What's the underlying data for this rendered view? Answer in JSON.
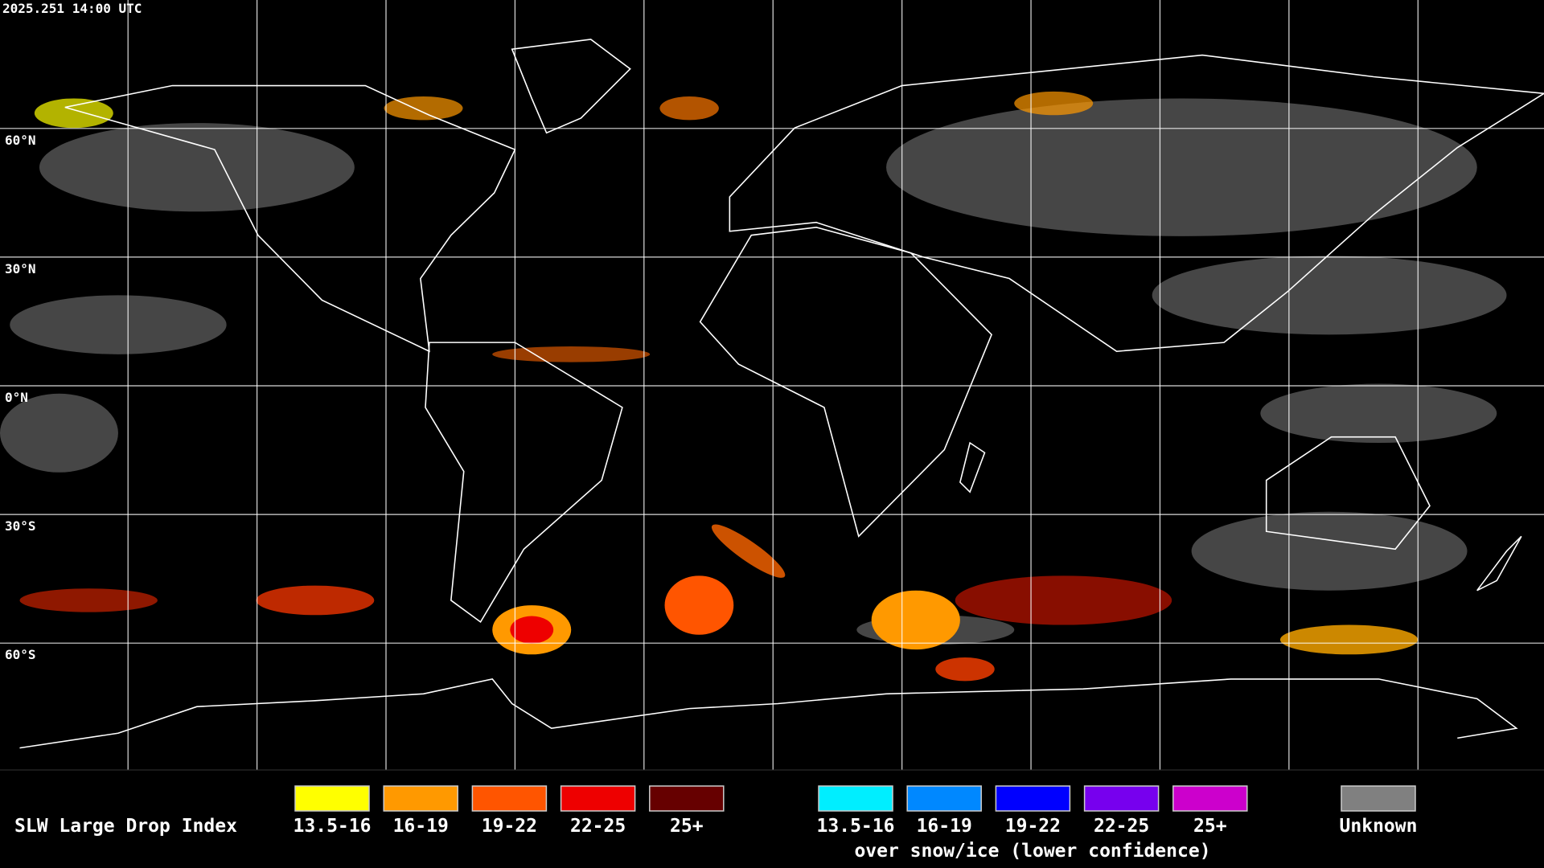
{
  "header": {
    "timestamp": "2025.251 14:00 UTC"
  },
  "map": {
    "lat_labels": [
      "60°N",
      "30°N",
      "0°N",
      "30°S",
      "60°S"
    ]
  },
  "legend": {
    "title": "SLW Large Drop Index",
    "items": [
      {
        "label": "13.5-16",
        "color": "#ffff00"
      },
      {
        "label": "16-19",
        "color": "#ff9900"
      },
      {
        "label": "19-22",
        "color": "#ff5500"
      },
      {
        "label": "22-25",
        "color": "#ee0000"
      },
      {
        "label": "25+",
        "color": "#660000"
      }
    ],
    "snow_items": [
      {
        "label": "13.5-16",
        "color": "#00eeff"
      },
      {
        "label": "16-19",
        "color": "#0088ff"
      },
      {
        "label": "19-22",
        "color": "#0000ff"
      },
      {
        "label": "22-25",
        "color": "#7700ee"
      },
      {
        "label": "25+",
        "color": "#cc00cc"
      }
    ],
    "snow_caption": "over snow/ice (lower confidence)",
    "unknown": {
      "label": "Unknown",
      "color": "#808080"
    }
  }
}
